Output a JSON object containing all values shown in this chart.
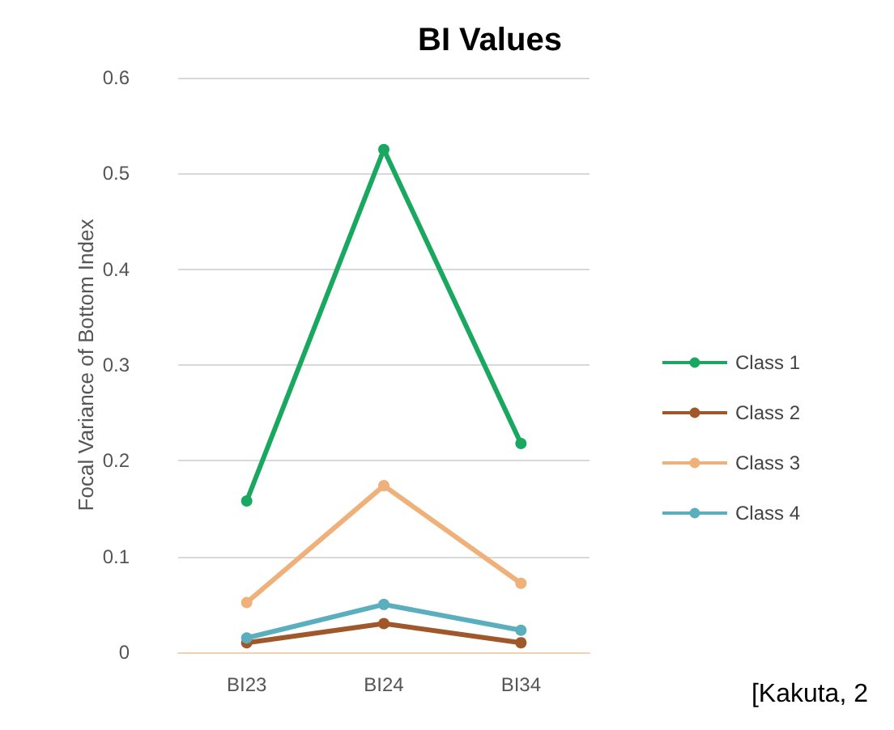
{
  "chart_data": {
    "type": "line",
    "title": "BI Values",
    "ylabel": "Focal Variance of Bottom Index",
    "categories": [
      "BI23",
      "BI24",
      "BI34"
    ],
    "series": [
      {
        "name": "Class 1",
        "color": "#1aa860",
        "values": [
          0.158,
          0.525,
          0.218
        ]
      },
      {
        "name": "Class 2",
        "color": "#a0582a",
        "values": [
          0.01,
          0.03,
          0.01
        ]
      },
      {
        "name": "Class 3",
        "color": "#f0b07a",
        "values": [
          0.052,
          0.174,
          0.072
        ]
      },
      {
        "name": "Class 4",
        "color": "#5aaebe",
        "values": [
          0.015,
          0.05,
          0.023
        ]
      }
    ],
    "ylim": [
      0,
      0.6
    ],
    "yticks": [
      0,
      0.1,
      0.2,
      0.3,
      0.4,
      0.5,
      0.6
    ],
    "grid": "y",
    "legend": "right",
    "marker": "circle",
    "line_style": "solid",
    "annotations": [
      "[Kakuta, 2"
    ]
  }
}
